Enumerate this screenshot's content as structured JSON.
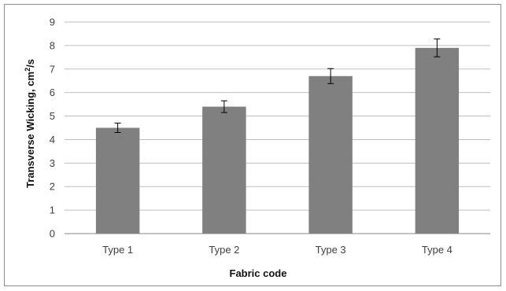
{
  "chart_data": {
    "type": "bar",
    "categories": [
      "Type 1",
      "Type 2",
      "Type 3",
      "Type 4"
    ],
    "values": [
      4.5,
      5.4,
      6.7,
      7.9
    ],
    "error_bars": [
      0.2,
      0.25,
      0.32,
      0.38
    ],
    "xlabel": "Fabric code",
    "ylabel_main": "Transverse Wicking, cm",
    "ylabel_sup": "2",
    "ylabel_tail": "/s",
    "ylim": [
      0,
      9
    ],
    "yticks": [
      0,
      1,
      2,
      3,
      4,
      5,
      6,
      7,
      8,
      9
    ],
    "ytick_labels": [
      "0",
      "1",
      "2",
      "3",
      "4",
      "5",
      "6",
      "7",
      "8",
      "9"
    ],
    "grid": true,
    "bar_color": "#808080",
    "grid_color": "#bfbfbf",
    "axis_color": "#868686"
  }
}
